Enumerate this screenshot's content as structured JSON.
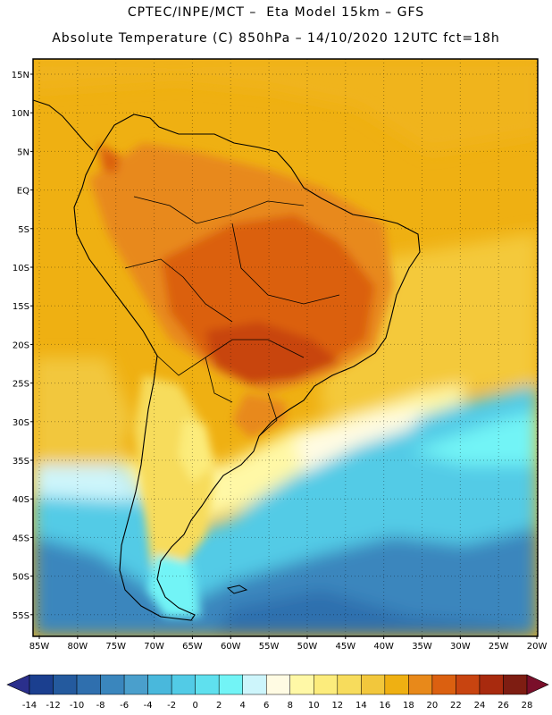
{
  "header": {
    "line1": "CPTEC/INPE/MCT –  Eta Model 15km – GFS",
    "line2": "Absolute Temperature (C) 850hPa – 14/10/2020 12UTC fct=18h"
  },
  "map": {
    "latitude_labels": [
      "15N",
      "10N",
      "5N",
      "EQ",
      "5S",
      "10S",
      "15S",
      "20S",
      "25S",
      "30S",
      "35S",
      "40S",
      "45S",
      "50S",
      "55S"
    ],
    "longitude_labels": [
      "85W",
      "80W",
      "75W",
      "70W",
      "65W",
      "60W",
      "55W",
      "50W",
      "45W",
      "40W",
      "35W",
      "30W",
      "25W",
      "20W"
    ]
  },
  "colorbar": {
    "ticks": [
      "-14",
      "-12",
      "-10",
      "-8",
      "-6",
      "-4",
      "-2",
      "0",
      "2",
      "4",
      "6",
      "8",
      "10",
      "12",
      "14",
      "16",
      "18",
      "20",
      "22",
      "24",
      "26",
      "28"
    ],
    "colors": [
      "#1b3f8f",
      "#245a9e",
      "#2f6fae",
      "#3a86bd",
      "#4a9fcc",
      "#49b8dc",
      "#52cbe6",
      "#5fe0ee",
      "#72f4f6",
      "#cdf5fb",
      "#fffbe3",
      "#fff8a6",
      "#fcec7c",
      "#f7dc5c",
      "#f2c73c",
      "#efb012",
      "#e8891a",
      "#db6010",
      "#c84410",
      "#a82a0e",
      "#7e1d12"
    ],
    "low_triangle_color": "#2a2f8c",
    "high_triangle_color": "#7a0f2a"
  }
}
